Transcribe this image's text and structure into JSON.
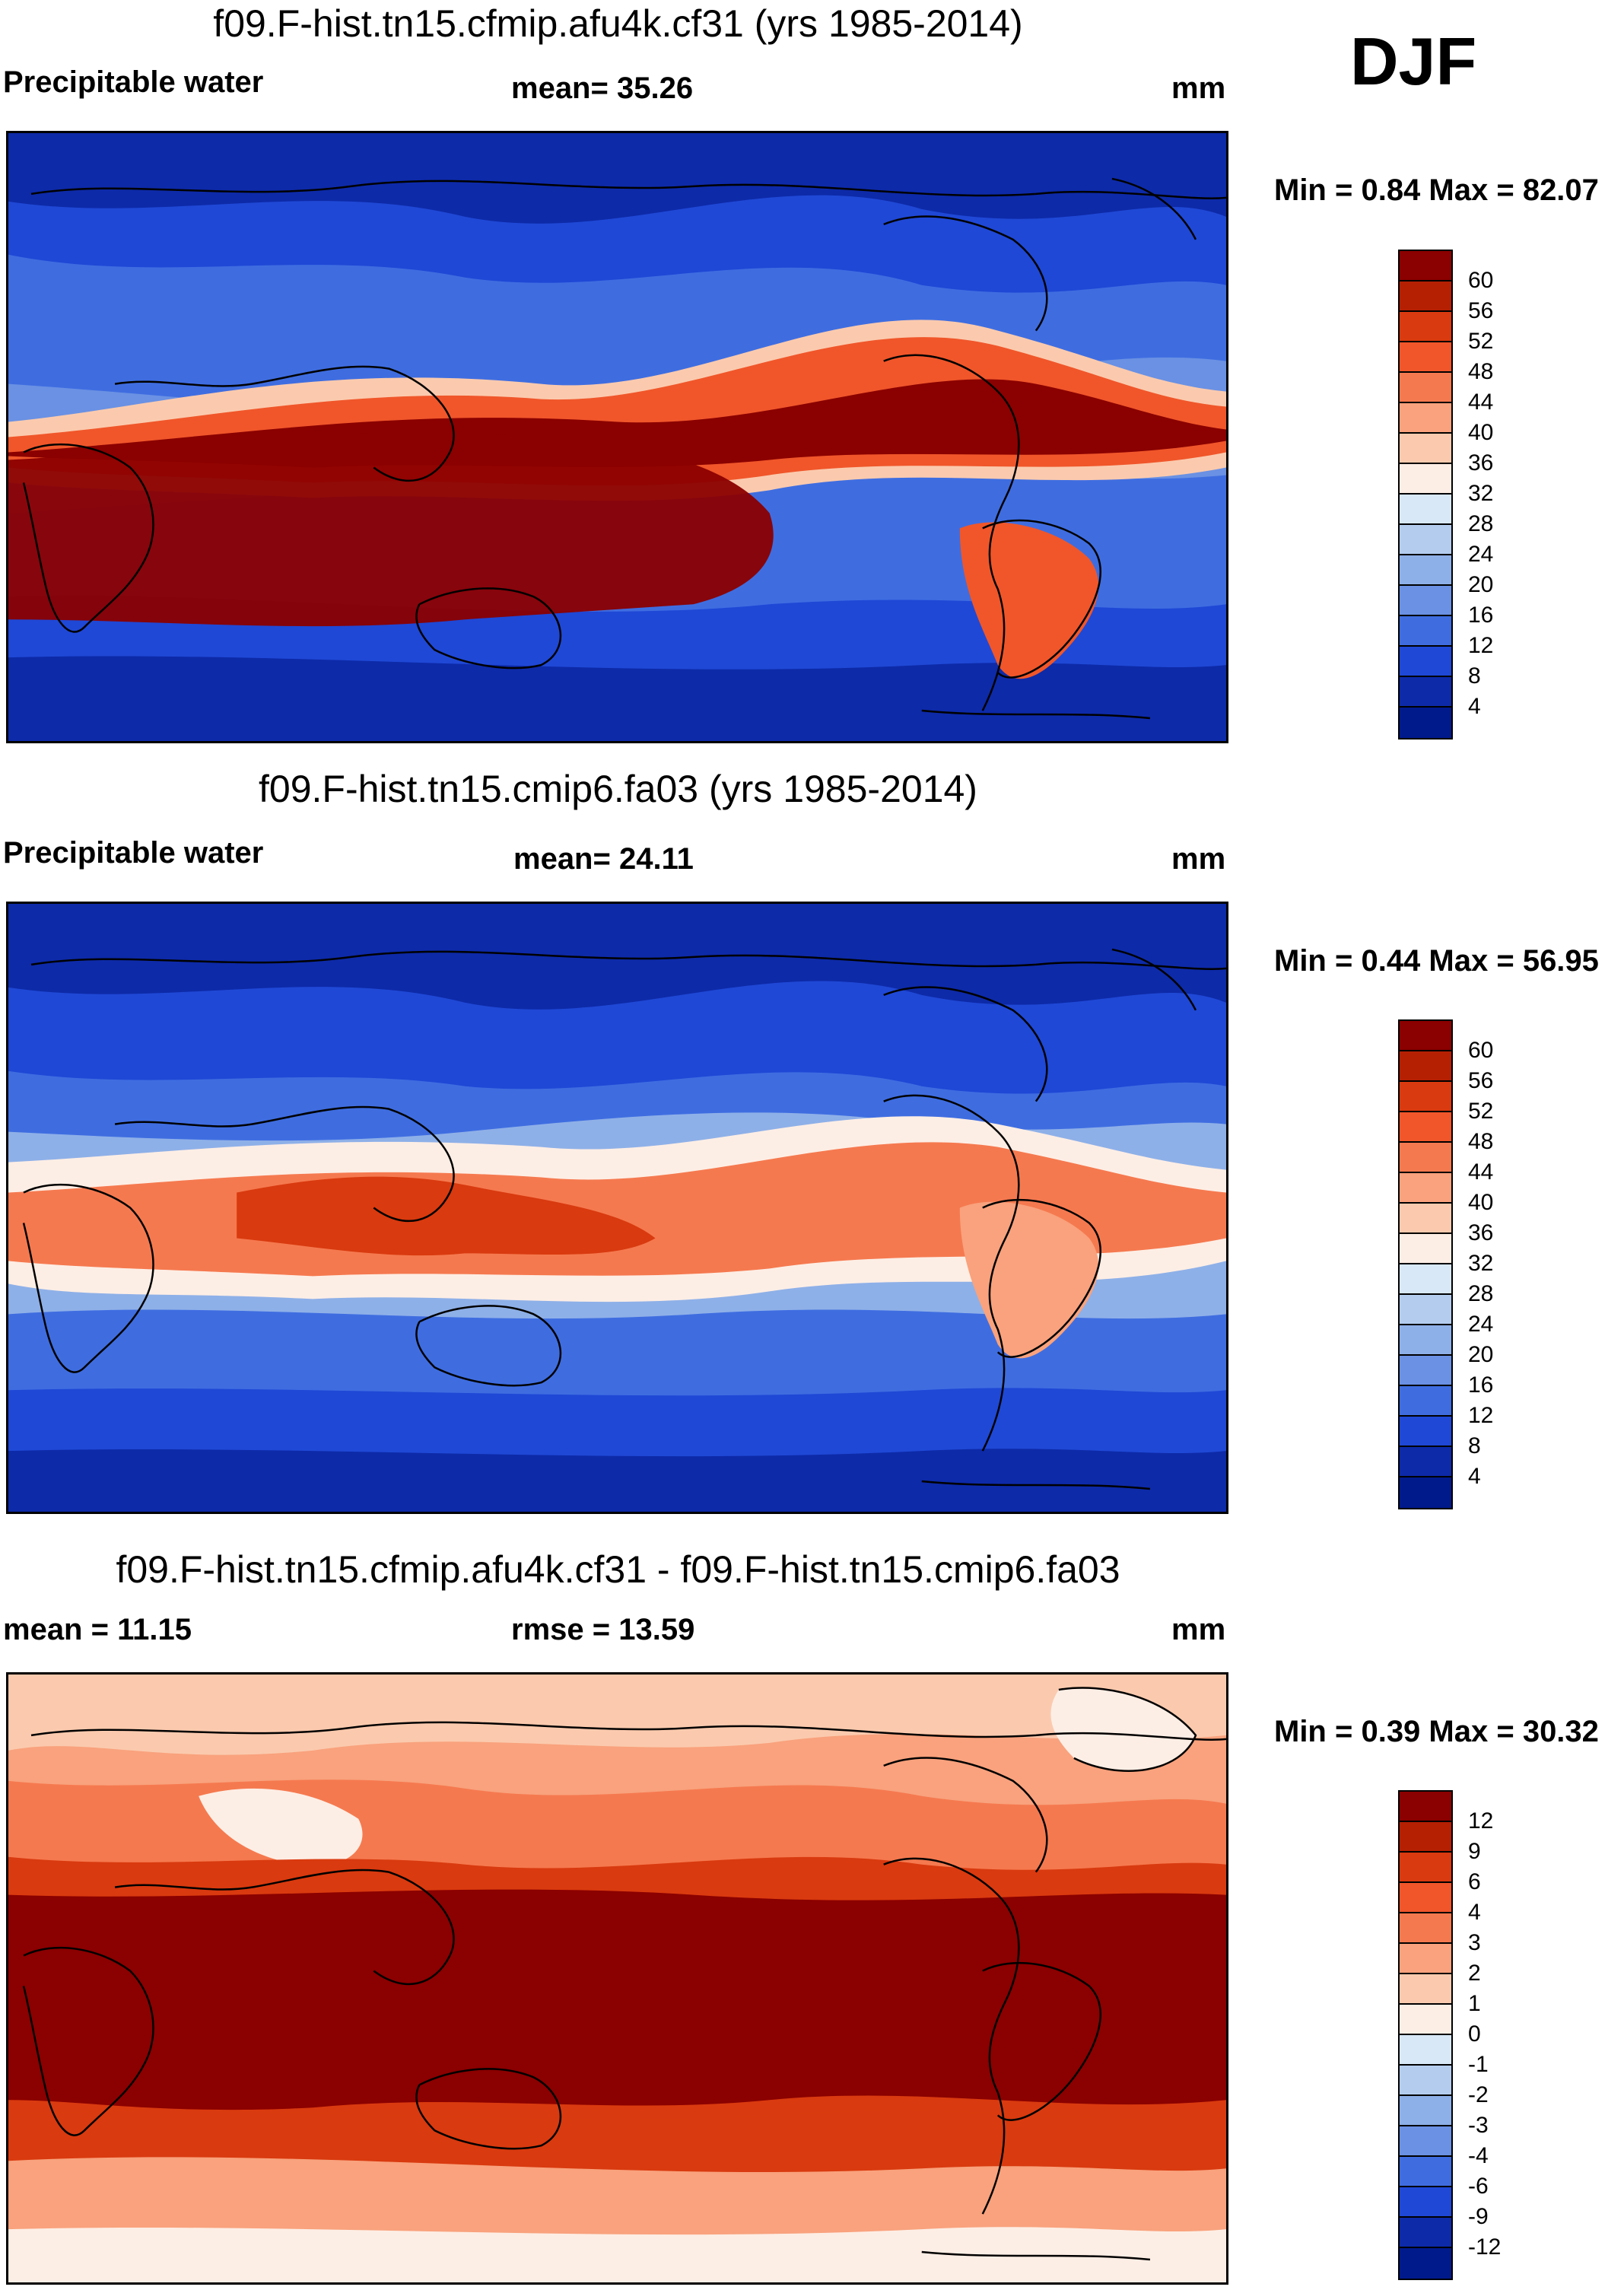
{
  "season": "DJF",
  "panels": [
    {
      "id": "model-a",
      "title": "f09.F-hist.tn15.cfmip.afu4k.cf31 (yrs 1985-2014)",
      "left_label": "Precipitable water",
      "center_label": "mean=  35.26",
      "units": "mm",
      "minmax": "Min =   0.84 Max =  82.07",
      "colorbar": {
        "labels": [
          "60",
          "56",
          "52",
          "48",
          "44",
          "40",
          "36",
          "32",
          "28",
          "24",
          "20",
          "16",
          "12",
          "8",
          "4"
        ],
        "colors": [
          "#8b0000",
          "#b52003",
          "#d93a0f",
          "#f0562a",
          "#f5794f",
          "#f9a27d",
          "#fbcaae",
          "#fdeee5",
          "#d8e8f7",
          "#b4cdef",
          "#8eb0e8",
          "#6a91e3",
          "#3f6de0",
          "#1f48d6",
          "#0d2aa8",
          "#001a8c"
        ]
      }
    },
    {
      "id": "model-b",
      "title": "f09.F-hist.tn15.cmip6.fa03 (yrs 1985-2014)",
      "left_label": "Precipitable water",
      "center_label": "mean=  24.11",
      "units": "mm",
      "minmax": "Min =   0.44 Max =  56.95",
      "colorbar": {
        "labels": [
          "60",
          "56",
          "52",
          "48",
          "44",
          "40",
          "36",
          "32",
          "28",
          "24",
          "20",
          "16",
          "12",
          "8",
          "4"
        ],
        "colors": [
          "#8b0000",
          "#b52003",
          "#d93a0f",
          "#f0562a",
          "#f5794f",
          "#f9a27d",
          "#fbcaae",
          "#fdeee5",
          "#d8e8f7",
          "#b4cdef",
          "#8eb0e8",
          "#6a91e3",
          "#3f6de0",
          "#1f48d6",
          "#0d2aa8",
          "#001a8c"
        ]
      }
    },
    {
      "id": "difference",
      "title": "f09.F-hist.tn15.cfmip.afu4k.cf31 - f09.F-hist.tn15.cmip6.fa03",
      "left_label": "mean =  11.15",
      "center_label": "rmse =  13.59",
      "units": "mm",
      "minmax": "Min =   0.39 Max =  30.32",
      "colorbar": {
        "labels": [
          "12",
          "9",
          "6",
          "4",
          "3",
          "2",
          "1",
          "0",
          "-1",
          "-2",
          "-3",
          "-4",
          "-6",
          "-9",
          "-12"
        ],
        "colors": [
          "#8b0000",
          "#b52003",
          "#d93a0f",
          "#f0562a",
          "#f5794f",
          "#f9a27d",
          "#fbcaae",
          "#fdeee5",
          "#d8e8f7",
          "#b4cdef",
          "#8eb0e8",
          "#6a91e3",
          "#3f6de0",
          "#1f48d6",
          "#0d2aa8",
          "#001a8c"
        ]
      }
    }
  ]
}
